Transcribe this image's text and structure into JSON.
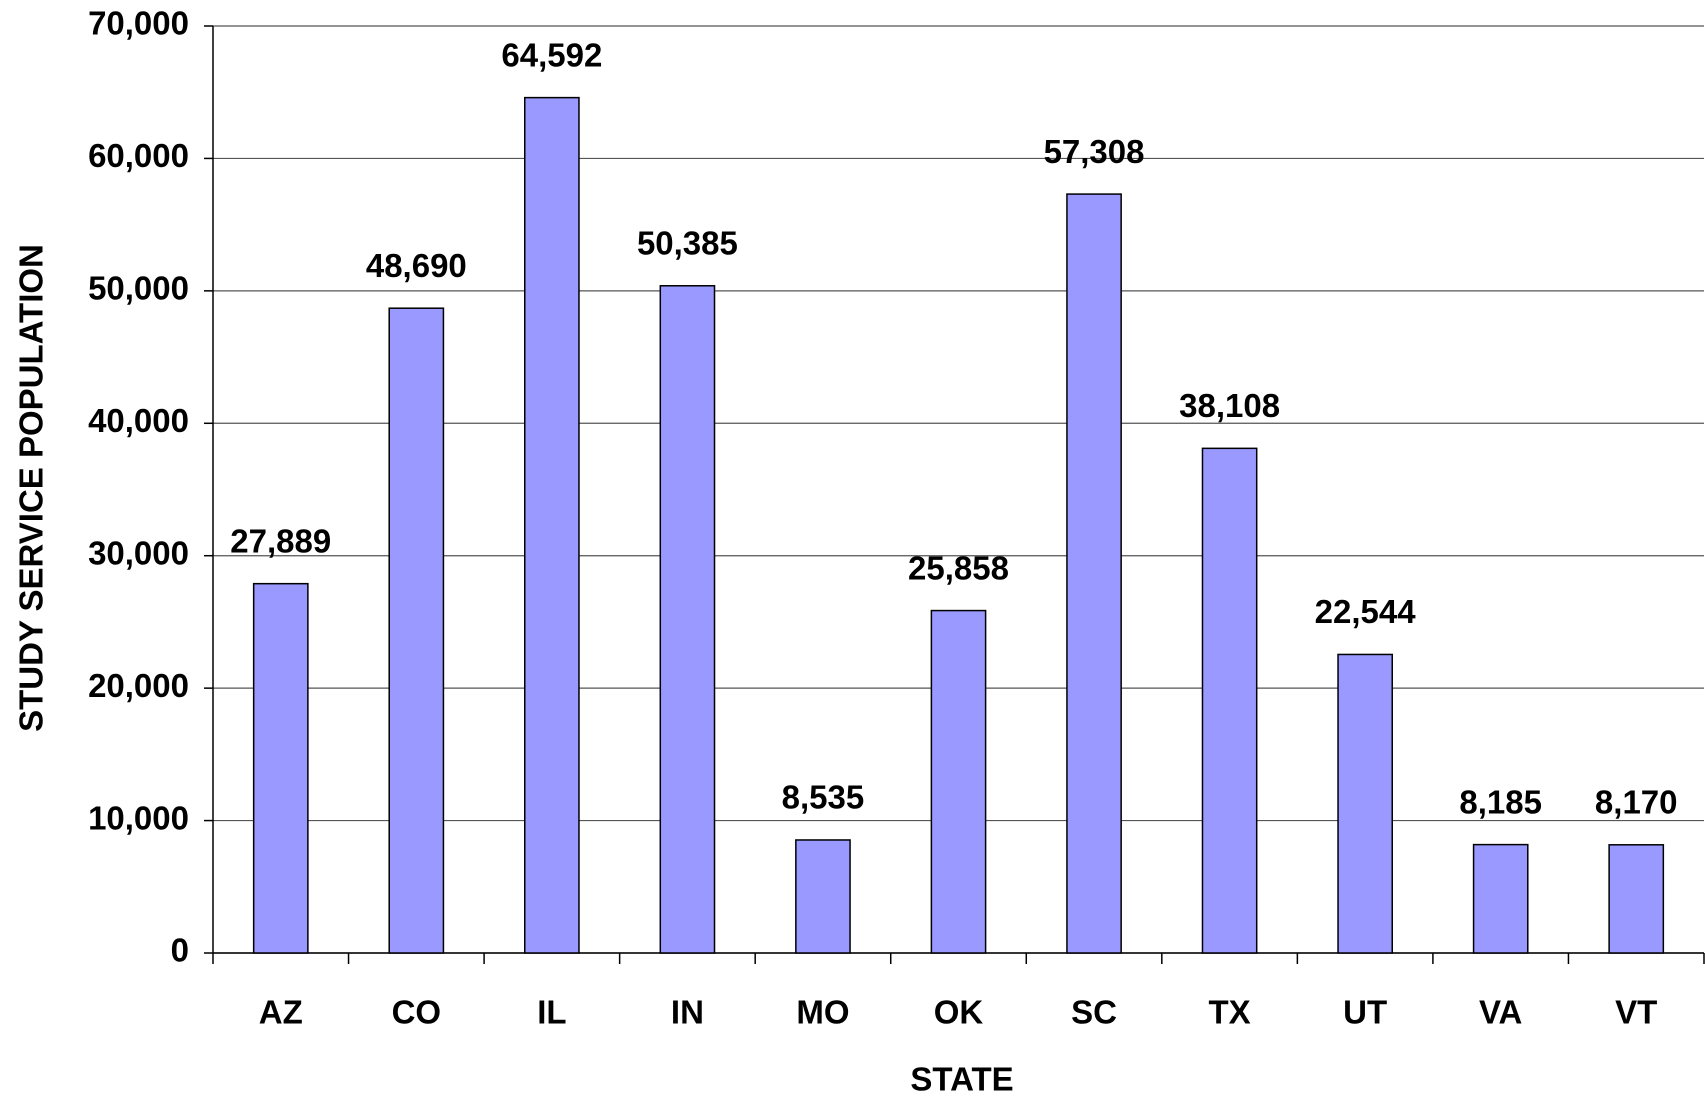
{
  "chart_data": {
    "type": "bar",
    "x_label": "STATE",
    "y_label": "STUDY SERVICE POPULATION",
    "categories": [
      "AZ",
      "CO",
      "IL",
      "IN",
      "MO",
      "OK",
      "SC",
      "TX",
      "UT",
      "VA",
      "VT"
    ],
    "values": [
      27889,
      48690,
      64592,
      50385,
      8535,
      25858,
      57308,
      38108,
      22544,
      8185,
      8170
    ],
    "value_labels": [
      "27,889",
      "48,690",
      "64,592",
      "50,385",
      "8,535",
      "25,858",
      "57,308",
      "38,108",
      "22,544",
      "8,185",
      "8,170"
    ],
    "color": "#9999ff",
    "ylim": [
      0,
      70000
    ],
    "yticks": [
      0,
      {
        "value": 10000,
        "label": "10,000"
      },
      {
        "value": 20000,
        "label": "20,000"
      },
      {
        "value": 30000,
        "label": "30,000"
      },
      {
        "value": 40000,
        "label": "40,000"
      },
      {
        "value": 50000,
        "label": "50,000"
      },
      {
        "value": 60000,
        "label": "60,000"
      },
      {
        "value": 70000,
        "label": "70,000"
      }
    ],
    "grid": true
  }
}
